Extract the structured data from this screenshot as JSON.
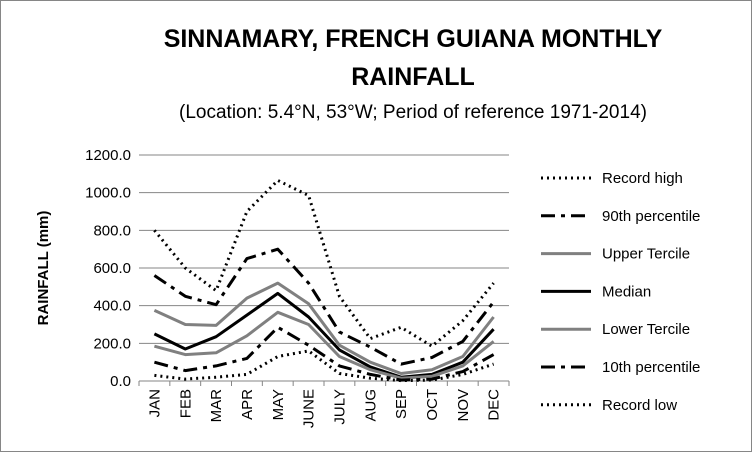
{
  "chart_data": {
    "type": "line",
    "title_line1": "SINNAMARY, FRENCH GUIANA MONTHLY",
    "title_line2": "RAINFALL",
    "subtitle": "(Location: 5.4°N, 53°W; Period of reference 1971-2014)",
    "xlabel": "",
    "ylabel": "RAINFALL (mm)",
    "ylim": [
      0,
      1200
    ],
    "yticks": [
      "0.0",
      "200.0",
      "400.0",
      "600.0",
      "800.0",
      "1000.0",
      "1200.0"
    ],
    "categories": [
      "JAN",
      "FEB",
      "MAR",
      "APR",
      "MAY",
      "JUNE",
      "JULY",
      "AUG",
      "SEP",
      "OCT",
      "NOV",
      "DEC"
    ],
    "grid": true,
    "legend_position": "right",
    "series": [
      {
        "name": "Record high",
        "style": "dotted",
        "color": "#000000",
        "values": [
          800,
          600,
          480,
          900,
          1065,
          985,
          450,
          225,
          285,
          185,
          320,
          520
        ]
      },
      {
        "name": "90th percentile",
        "style": "dashdot",
        "color": "#000000",
        "values": [
          560,
          450,
          405,
          650,
          700,
          520,
          260,
          180,
          90,
          125,
          210,
          420
        ]
      },
      {
        "name": "Upper Tercile",
        "style": "solid",
        "color": "#808080",
        "values": [
          375,
          300,
          295,
          440,
          520,
          410,
          190,
          100,
          40,
          60,
          130,
          340
        ]
      },
      {
        "name": "Median",
        "style": "solid",
        "color": "#000000",
        "values": [
          250,
          170,
          235,
          350,
          465,
          340,
          165,
          75,
          20,
          35,
          100,
          275
        ]
      },
      {
        "name": "Lower Tercile",
        "style": "solid",
        "color": "#808080",
        "values": [
          185,
          140,
          150,
          240,
          365,
          300,
          130,
          60,
          15,
          25,
          80,
          210
        ]
      },
      {
        "name": "10th percentile",
        "style": "dashdot",
        "color": "#000000",
        "values": [
          100,
          55,
          80,
          120,
          285,
          190,
          80,
          35,
          5,
          10,
          50,
          140
        ]
      },
      {
        "name": "Record low",
        "style": "dotted",
        "color": "#000000",
        "values": [
          30,
          10,
          20,
          35,
          130,
          160,
          40,
          15,
          2,
          5,
          35,
          90
        ]
      }
    ]
  }
}
